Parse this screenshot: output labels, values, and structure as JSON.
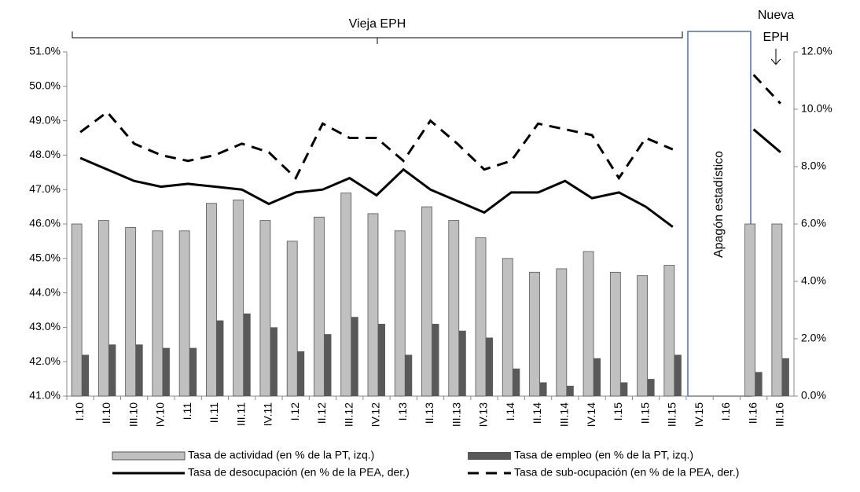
{
  "chart_data": {
    "type": "bar_line",
    "annotations": {
      "old": "Vieja EPH",
      "new_line1": "Nueva",
      "new_line2": "EPH",
      "blackout": "Apagón estadístico"
    },
    "categories": [
      "I.10",
      "II.10",
      "III.10",
      "IV.10",
      "I.11",
      "II.11",
      "III.11",
      "IV.11",
      "I.12",
      "II.12",
      "III.12",
      "IV.12",
      "I.13",
      "II.13",
      "III.13",
      "IV.13",
      "I.14",
      "II.14",
      "III.14",
      "IV.14",
      "I.15",
      "II.15",
      "III.15",
      "IV.15",
      "I.16",
      "II.16",
      "III.16"
    ],
    "ylim": [
      41,
      51
    ],
    "yticks": [
      {
        "value": 41,
        "label": "41.0%"
      },
      {
        "value": 42,
        "label": "42.0%"
      },
      {
        "value": 43,
        "label": "43.0%"
      },
      {
        "value": 44,
        "label": "44.0%"
      },
      {
        "value": 45,
        "label": "45.0%"
      },
      {
        "value": 46,
        "label": "46.0%"
      },
      {
        "value": 47,
        "label": "47.0%"
      },
      {
        "value": 48,
        "label": "48.0%"
      },
      {
        "value": 49,
        "label": "49.0%"
      },
      {
        "value": 50,
        "label": "50.0%"
      },
      {
        "value": 51,
        "label": "51.0%"
      }
    ],
    "y2lim": [
      0,
      12
    ],
    "y2ticks": [
      {
        "value": 0,
        "label": "0.0%"
      },
      {
        "value": 2,
        "label": "2.0%"
      },
      {
        "value": 4,
        "label": "4.0%"
      },
      {
        "value": 6,
        "label": "6.0%"
      },
      {
        "value": 8,
        "label": "8.0%"
      },
      {
        "value": 10,
        "label": "10.0%"
      },
      {
        "value": 12,
        "label": "12.0%"
      }
    ],
    "series": [
      {
        "name": "Tasa de actividad (en % de la PT, izq.)",
        "kind": "bar",
        "color": "#c0c0c0",
        "values": [
          46.0,
          46.1,
          45.9,
          45.8,
          45.8,
          46.6,
          46.7,
          46.1,
          45.5,
          46.2,
          46.9,
          46.3,
          45.8,
          46.5,
          46.1,
          45.6,
          45.0,
          44.6,
          44.7,
          45.2,
          44.6,
          44.5,
          44.8,
          null,
          null,
          46.0,
          46.0
        ]
      },
      {
        "name": "Tasa de empleo (en % de la PT, izq.)",
        "kind": "bar",
        "color": "#595959",
        "values": [
          42.2,
          42.5,
          42.5,
          42.4,
          42.4,
          43.2,
          43.4,
          43.0,
          42.3,
          42.8,
          43.3,
          43.1,
          42.2,
          43.1,
          42.9,
          42.7,
          41.8,
          41.4,
          41.3,
          42.1,
          41.4,
          41.5,
          42.2,
          null,
          null,
          41.7,
          42.1
        ]
      },
      {
        "name": "Tasa de desocupación (en % de la PEA, der.)",
        "kind": "line",
        "axis": "y2",
        "color": "#000000",
        "line_style": "solid",
        "values": [
          8.3,
          7.9,
          7.5,
          7.3,
          7.4,
          7.3,
          7.2,
          6.7,
          7.1,
          7.2,
          7.6,
          7.0,
          7.9,
          7.2,
          6.8,
          6.4,
          7.1,
          7.1,
          7.5,
          6.9,
          7.1,
          6.6,
          5.9,
          null,
          null,
          9.3,
          8.5
        ]
      },
      {
        "name": "Tasa de sub-ocupación (en % de la PEA, der.)",
        "kind": "line",
        "axis": "y2",
        "color": "#000000",
        "line_style": "dashed",
        "values": [
          9.2,
          9.9,
          8.8,
          8.4,
          8.2,
          8.4,
          8.8,
          8.5,
          7.6,
          9.5,
          9.0,
          9.0,
          8.2,
          9.6,
          8.8,
          7.9,
          8.2,
          9.5,
          9.3,
          9.1,
          7.6,
          9.0,
          8.6,
          null,
          null,
          11.2,
          10.2
        ]
      }
    ]
  }
}
